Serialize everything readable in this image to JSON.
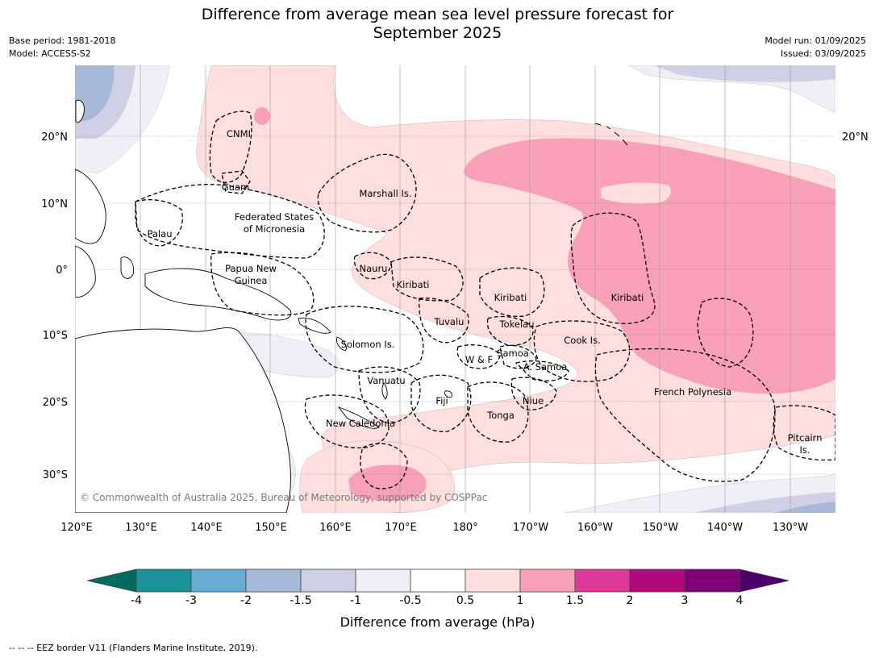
{
  "title_line1": "Difference from average mean sea level pressure forecast for",
  "title_line2": "September 2025",
  "meta_left": [
    "Base period: 1981-2018",
    "Model: ACCESS-S2"
  ],
  "meta_right": [
    "Model run: 01/09/2025",
    "Issued: 03/09/2025"
  ],
  "copyright": "© Commonwealth of Australia 2025, Bureau of Meteorology, supported by COSPPac",
  "lat_labels": [
    "20°N",
    "10°N",
    "0°",
    "10°S",
    "20°S",
    "30°S"
  ],
  "lon_labels": [
    "120°E",
    "130°E",
    "140°E",
    "150°E",
    "160°E",
    "170°E",
    "180°",
    "170°W",
    "160°W",
    "150°W",
    "140°W",
    "130°W"
  ],
  "place_labels": {
    "cnmi": "CNMI",
    "guam": "Guam",
    "marshall": "Marshall Is.",
    "fsm1": "Federated States",
    "fsm2": "of Micronesia",
    "palau": "Palau",
    "png1": "Papua New",
    "png2": "Guinea",
    "nauru": "Nauru",
    "kiribati_w": "Kiribati",
    "kiribati_c": "Kiribati",
    "kiribati_e": "Kiribati",
    "tuvalu": "Tuvalu",
    "tokelau": "Tokelau",
    "cook": "Cook Is.",
    "solomon": "Solomon Is.",
    "wf": "W & F",
    "samoa": "Samoa",
    "asamoa": "A. Samoa",
    "vanuatu": "Vanuatu",
    "fiji": "Fiji",
    "niue": "Niue",
    "tonga": "Tonga",
    "frenchpoly": "French Polynesia",
    "newcal": "New Caledonia",
    "pitcairn1": "Pitcairn",
    "pitcairn2": "Is."
  },
  "colorbar": {
    "ticks": [
      "-4",
      "-3",
      "-2",
      "-1.5",
      "-1",
      "-0.5",
      "0.5",
      "1",
      "1.5",
      "2",
      "3",
      "4"
    ],
    "colors": {
      "under": "#006b5e",
      "lt_m4_m3": "#1b9199",
      "m3_m2": "#6aabd4",
      "m2_m15": "#a6b9d9",
      "m15_m1": "#cfd0e6",
      "m1_m05": "#f2eef5",
      "m05_05": "#ffffff",
      "p05_1": "#fedede",
      "p1_15": "#f8a0b7",
      "p15_2": "#dc3a9b",
      "p2_3": "#b0097b",
      "p3_4": "#7d0077",
      "over": "#4b006b"
    },
    "label": "Difference from average (hPa)"
  },
  "footnote": "--  --  -- EEZ border V11 (Flanders Marine Institute, 2019)."
}
